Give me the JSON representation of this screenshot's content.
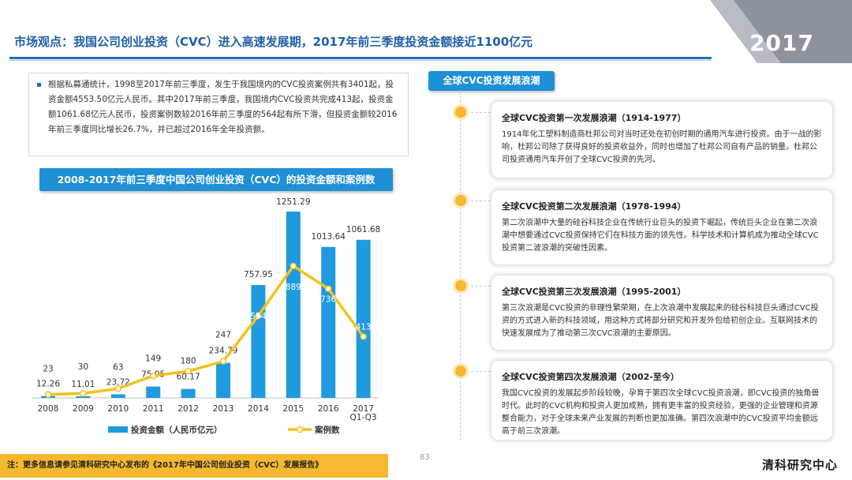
{
  "header": {
    "title": "市场观点：我国公司创业投资（CVC）进入高速发展期，2017年前三季度投资金额接近1100亿元",
    "year_badge": "2017"
  },
  "summary": {
    "text": "根据私募通统计，1998至2017年前三季度，发生于我国境内的CVC投资案例共有3401起，投资金额4553.50亿元人民币。其中2017年前三季度，我国境内CVC投资共完成413起，投资金额1061.68亿元人民币，投资案例数较2016年前三季度的564起有所下滑，但投资金额较2016年前三季度同比增长26.7%，并已超过2016年全年投资额。"
  },
  "chart_banner": "2008-2017年前三季度中国公司创业投资（CVC）的投资金额和案例数",
  "chart_data": {
    "type": "bar",
    "categories": [
      "2008",
      "2009",
      "2010",
      "2011",
      "2012",
      "2013",
      "2014",
      "2015",
      "2016",
      "2017\nQ1-Q3"
    ],
    "series": [
      {
        "name": "投资金额（人民币亿元）",
        "type": "bar",
        "values": [
          12.26,
          11.01,
          23.72,
          75.95,
          60.17,
          234.79,
          757.95,
          1251.29,
          1013.64,
          1061.68
        ]
      },
      {
        "name": "案例数",
        "type": "line",
        "values": [
          23,
          30,
          63,
          149,
          180,
          247,
          554,
          889,
          736,
          413
        ]
      }
    ],
    "legend_position": "bottom",
    "grid": false,
    "colors": {
      "bar": "#1f9ae0",
      "line": "#f2c21b",
      "marker_fill": "#ffffff"
    }
  },
  "waves_header": "全球CVC投资发展浪潮",
  "waves": [
    {
      "title": "全球CVC投资第一次发展浪潮（1914-1977）",
      "body": "1914年化工塑料制造商杜邦公司对当时还处在初创时期的通用汽车进行投资。由于一战的影响，杜邦公司除了获得良好的投资收益外，同时也增加了杜邦公司自有产品的销量。杜邦公司投资通用汽车开创了全球CVC投资的先河。"
    },
    {
      "title": "全球CVC投资第二次发展浪潮（1978-1994）",
      "body": "第二次浪潮中大量的硅谷科技企业在传统行业巨头的投资下崛起，传统巨头企业在第二次浪潮中想要通过CVC投资保持它们在科技方面的领先性。科学技术和计算机成为推动全球CVC投资第二波浪潮的突破性因素。"
    },
    {
      "title": "全球CVC投资第三次发展浪潮（1995-2001）",
      "body": "第三次浪潮是CVC投资的非理性繁荣期，在上次浪潮中发展起来的硅谷科技巨头通过CVC投资的方式进入新的科技领域，用这种方式将部分研究和开发外包给初创企业。互联网技术的快速发展成为了推动第三次CVC浪潮的主要原因。"
    },
    {
      "title": "全球CVC投资第四次发展浪潮（2002-至今）",
      "body": "我国CVC投资的发展起步阶段较晚，孕育于第四次全球CVC投资浪潮，即CVC投资的独角兽时代。此时的CVC机构和投资人更加成熟，拥有更丰富的投资经验，更强的企业管理和资源整合能力，对于全球未来产业发展的判断也更加准确。第四次浪潮中的CVC投资平均金额远高于前三次浪潮。"
    }
  ],
  "footnote": "注：更多信息请参见清科研究中心发布的《2017年中国公司创业投资（CVC）发展报告》",
  "page_number": "83",
  "brand": "清科研究中心"
}
